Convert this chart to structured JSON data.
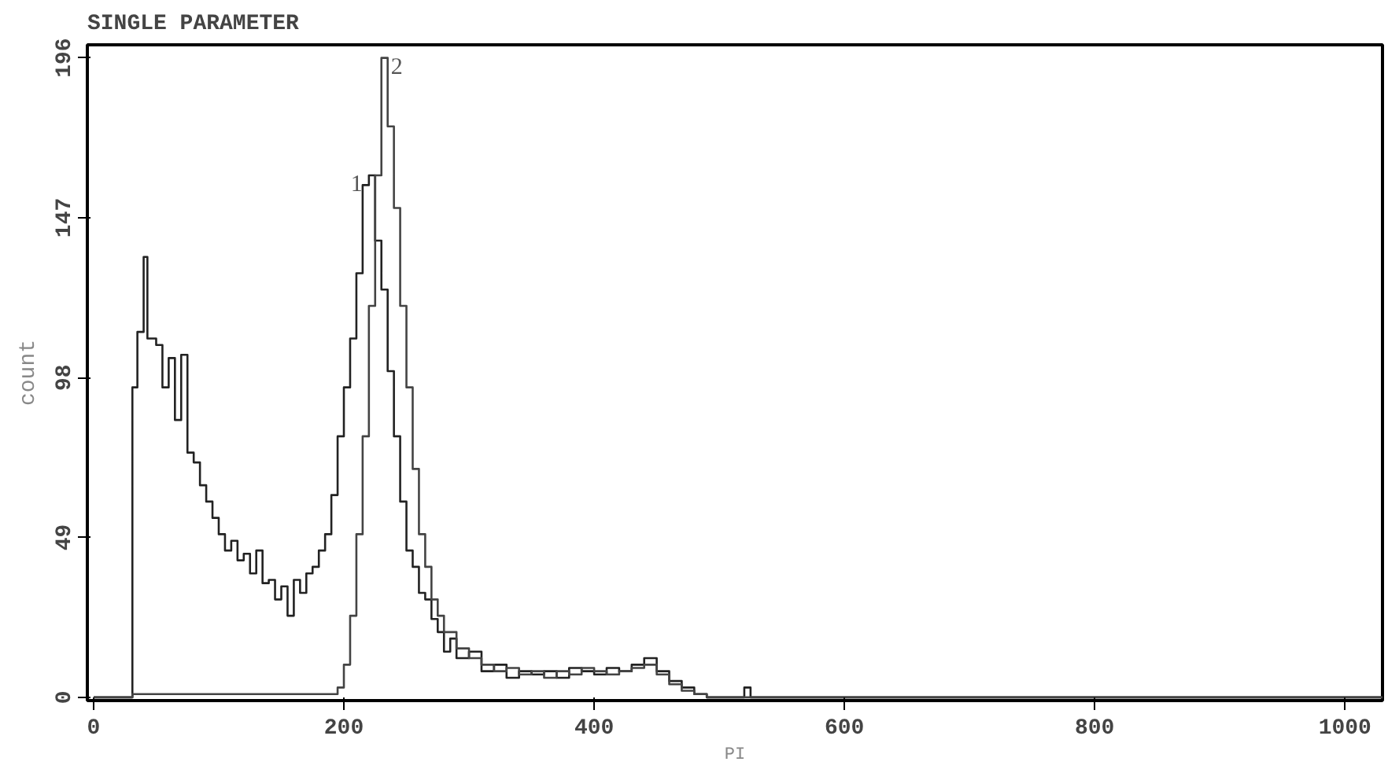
{
  "chart_data": {
    "type": "step",
    "title": "SINGLE PARAMETER",
    "xlabel": "PI",
    "ylabel": "count",
    "xlim": [
      -5,
      1030
    ],
    "ylim": [
      -1,
      200
    ],
    "xticks": [
      0,
      200,
      400,
      600,
      800,
      1000
    ],
    "yticks": [
      0,
      49,
      98,
      147,
      196
    ],
    "grid": false,
    "series": [
      {
        "color": "#222222",
        "x": [
          0,
          31,
          35,
          40,
          43,
          50,
          55,
          60,
          65,
          70,
          75,
          80,
          85,
          90,
          95,
          100,
          105,
          110,
          115,
          120,
          125,
          130,
          135,
          140,
          145,
          150,
          155,
          160,
          165,
          170,
          175,
          180,
          185,
          190,
          195,
          200,
          205,
          210,
          215,
          220,
          225,
          230,
          235,
          240,
          245,
          250,
          255,
          260,
          265,
          270,
          275,
          280,
          285,
          290,
          300,
          310,
          320,
          330,
          340,
          350,
          360,
          370,
          380,
          390,
          400,
          410,
          420,
          430,
          440,
          450,
          460,
          470,
          480,
          490,
          520,
          525,
          1030
        ],
        "values": [
          0,
          95,
          112,
          135,
          110,
          108,
          95,
          104,
          85,
          105,
          75,
          72,
          65,
          60,
          55,
          50,
          45,
          48,
          42,
          44,
          38,
          45,
          35,
          36,
          30,
          34,
          25,
          36,
          32,
          38,
          40,
          45,
          50,
          62,
          80,
          95,
          110,
          130,
          157,
          160,
          140,
          125,
          100,
          80,
          60,
          45,
          40,
          32,
          30,
          24,
          20,
          14,
          18,
          12,
          14,
          8,
          10,
          6,
          8,
          7,
          8,
          6,
          9,
          8,
          7,
          9,
          8,
          10,
          12,
          8,
          5,
          3,
          1,
          0,
          3,
          0,
          0
        ]
      },
      {
        "color": "#444444",
        "x": [
          0,
          31,
          190,
          195,
          200,
          205,
          210,
          215,
          220,
          225,
          230,
          235,
          240,
          245,
          250,
          255,
          260,
          265,
          270,
          275,
          280,
          290,
          300,
          310,
          320,
          330,
          340,
          350,
          360,
          370,
          380,
          390,
          400,
          410,
          420,
          430,
          440,
          450,
          460,
          470,
          480,
          490,
          1030
        ],
        "values": [
          0,
          1,
          1,
          3,
          10,
          25,
          50,
          80,
          120,
          160,
          196,
          175,
          150,
          120,
          95,
          70,
          50,
          40,
          30,
          25,
          20,
          15,
          12,
          10,
          8,
          9,
          7,
          8,
          6,
          8,
          7,
          9,
          8,
          7,
          8,
          9,
          10,
          7,
          4,
          2,
          1,
          0,
          0
        ]
      }
    ],
    "annotations": [
      "1",
      "2"
    ]
  }
}
